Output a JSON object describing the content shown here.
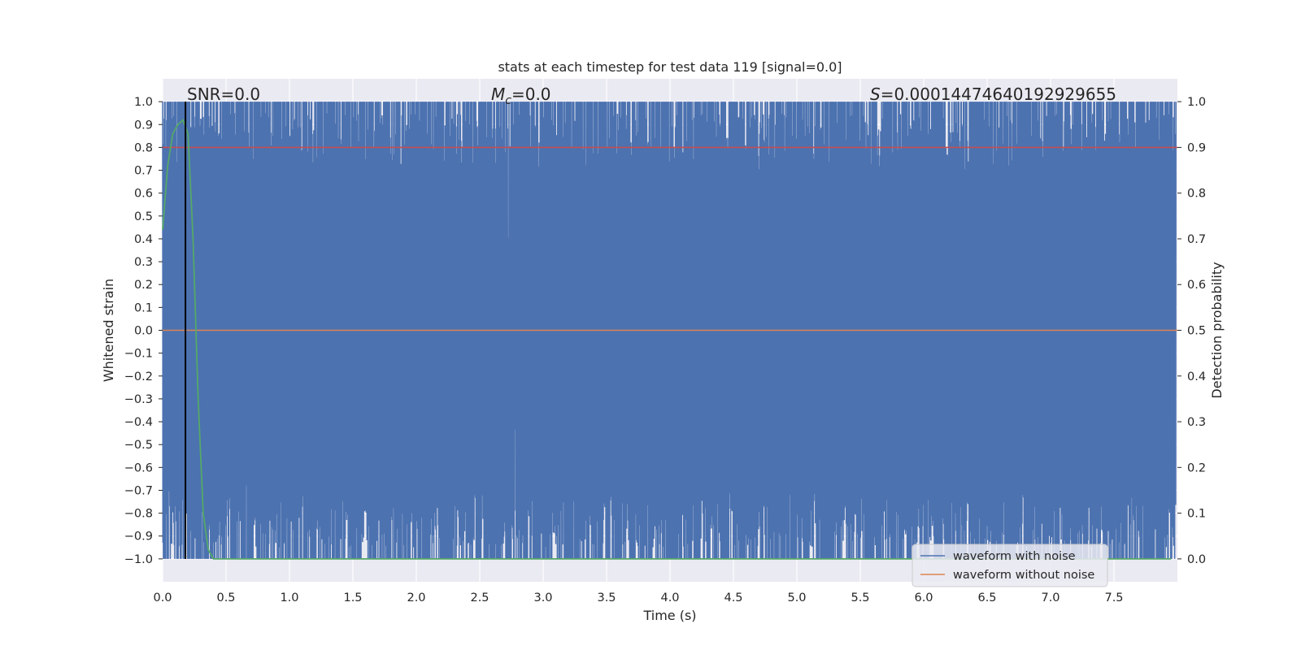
{
  "chart_data": {
    "type": "line",
    "title": "stats at each timestep for test data 119 [signal=0.0]",
    "xlabel": "Time (s)",
    "ylabel": "Whitened strain",
    "y2label": "Detection probability",
    "xlim": [
      0.0,
      8.0
    ],
    "ylim": [
      -1.1,
      1.1
    ],
    "y2lim": [
      -0.05,
      1.05
    ],
    "x_ticks": [
      "0.0",
      "0.5",
      "1.0",
      "1.5",
      "2.0",
      "2.5",
      "3.0",
      "3.5",
      "4.0",
      "4.5",
      "5.0",
      "5.5",
      "6.0",
      "6.5",
      "7.0",
      "7.5"
    ],
    "y_ticks": [
      "1.0",
      "0.9",
      "0.8",
      "0.7",
      "0.6",
      "0.5",
      "0.4",
      "0.3",
      "0.2",
      "0.1",
      "0.0",
      "−0.1",
      "−0.2",
      "−0.3",
      "−0.4",
      "−0.5",
      "−0.6",
      "−0.7",
      "−0.8",
      "−0.9",
      "−1.0"
    ],
    "y2_ticks": [
      "1.0",
      "0.9",
      "0.8",
      "0.7",
      "0.6",
      "0.5",
      "0.4",
      "0.3",
      "0.2",
      "0.1",
      "0.0"
    ],
    "grid": true,
    "legend_position": "lower-right",
    "series": [
      {
        "name": "waveform with noise",
        "color": "#4c72b0",
        "axis": "left",
        "description_range": [
          -1.0,
          1.0
        ],
        "sample_rate_hz": 512
      },
      {
        "name": "waveform without noise",
        "color": "#dd8452",
        "axis": "left",
        "x": [
          0.0,
          8.0
        ],
        "y": [
          0.0,
          0.0
        ]
      },
      {
        "color": "#55a868",
        "axis": "right",
        "x": [
          0.0,
          0.04,
          0.08,
          0.12,
          0.16,
          0.2,
          0.24,
          0.28,
          0.32,
          0.36,
          0.4,
          0.5,
          1.0,
          2.0,
          3.0,
          4.0,
          5.0,
          6.0,
          7.0,
          7.95
        ],
        "y": [
          0.72,
          0.86,
          0.93,
          0.95,
          0.96,
          0.93,
          0.7,
          0.35,
          0.1,
          0.02,
          0.0,
          0.0,
          0.0,
          0.0,
          0.0,
          0.0,
          0.0,
          0.0,
          0.0,
          0.0
        ]
      }
    ],
    "threshold": {
      "color": "#c44e52",
      "axis": "right",
      "value": 0.9
    },
    "vline": {
      "color": "#000000",
      "x": 0.18,
      "ymin": -1.0,
      "ymax": 1.0
    },
    "annotations": {
      "snr": "SNR=0.0",
      "mc_symbol": "M",
      "mc_sub": "c",
      "mc_value": "=0.0",
      "s_symbol": "S",
      "s_value": "=0.00014474640192929655"
    }
  }
}
